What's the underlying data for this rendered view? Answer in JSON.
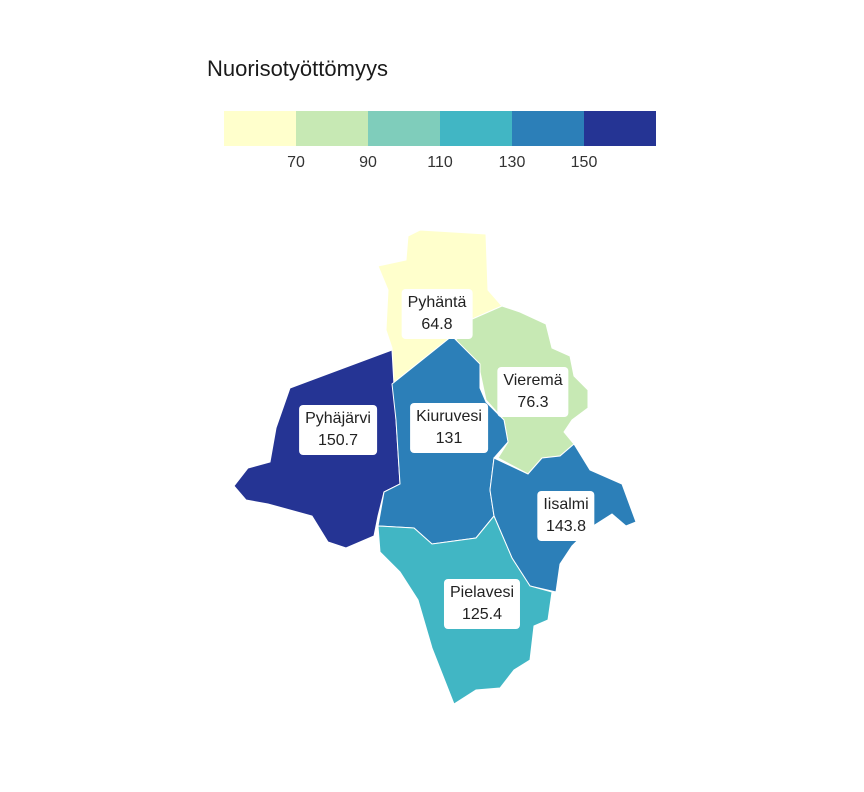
{
  "legend": {
    "title": "Nuorisotyöttömyys",
    "colors": [
      "#ffffcc",
      "#c7e9b4",
      "#7fcdbb",
      "#41b6c4",
      "#2c7fb8",
      "#253494"
    ],
    "ticks": [
      "70",
      "90",
      "110",
      "130",
      "150"
    ]
  },
  "regions": [
    {
      "name": "Pyhäntä",
      "value": "64.8",
      "color": "#ffffcc"
    },
    {
      "name": "Vieremä",
      "value": "76.3",
      "color": "#c7e9b4"
    },
    {
      "name": "Pyhäjärvi",
      "value": "150.7",
      "color": "#253494"
    },
    {
      "name": "Kiuruvesi",
      "value": "131",
      "color": "#2c7fb8"
    },
    {
      "name": "Iisalmi",
      "value": "143.8",
      "color": "#2c7fb8"
    },
    {
      "name": "Pielavesi",
      "value": "125.4",
      "color": "#41b6c4"
    }
  ]
}
